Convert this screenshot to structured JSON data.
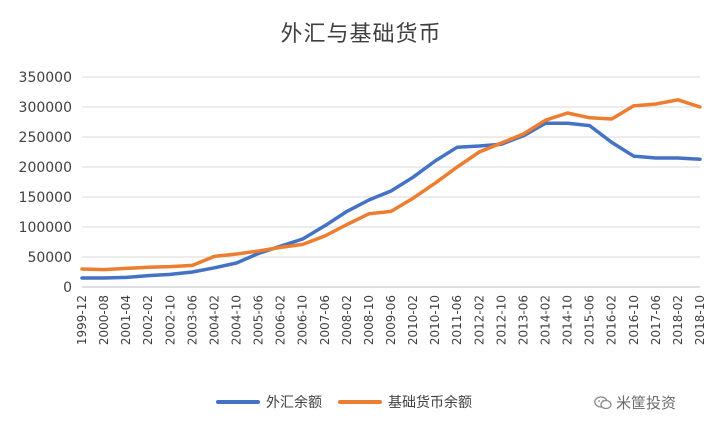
{
  "chart_data": {
    "type": "line",
    "title": "外汇与基础货币",
    "ylim": [
      0,
      350000
    ],
    "yticks": [
      "0",
      "50000",
      "100000",
      "150000",
      "200000",
      "250000",
      "300000",
      "350000"
    ],
    "xlabels": [
      "1999-12",
      "2000-08",
      "2001-04",
      "2002-02",
      "2002-10",
      "2003-06",
      "2004-02",
      "2004-10",
      "2005-06",
      "2006-02",
      "2006-10",
      "2007-06",
      "2008-02",
      "2008-10",
      "2009-06",
      "2010-02",
      "2010-10",
      "2011-06",
      "2012-02",
      "2012-10",
      "2013-06",
      "2014-02",
      "2014-10",
      "2015-06",
      "2016-02",
      "2016-10",
      "2017-06",
      "2018-02",
      "2018-10"
    ],
    "grid": true,
    "legend_position": "bottom",
    "series": [
      {
        "name": "外汇余额",
        "color": "#4472C4",
        "values": [
          15000,
          15000,
          16000,
          19000,
          21000,
          25000,
          32000,
          40000,
          56000,
          68000,
          80000,
          102000,
          126000,
          145000,
          160000,
          183000,
          210000,
          233000,
          235000,
          238000,
          252000,
          273000,
          273000,
          269000,
          241000,
          218000,
          215000,
          215000,
          213000
        ]
      },
      {
        "name": "基础货币余额",
        "color": "#ED7D31",
        "values": [
          30000,
          29000,
          31000,
          33000,
          34000,
          36000,
          51000,
          55000,
          60000,
          66000,
          71000,
          85000,
          104000,
          122000,
          126000,
          148000,
          173000,
          200000,
          225000,
          240000,
          255000,
          278000,
          290000,
          282000,
          280000,
          302000,
          305000,
          312000,
          300000
        ]
      }
    ]
  },
  "legend": {
    "series_a_label": "外汇余额",
    "series_b_label": "基础货币余额"
  },
  "watermark": {
    "text": "米筐投资"
  }
}
